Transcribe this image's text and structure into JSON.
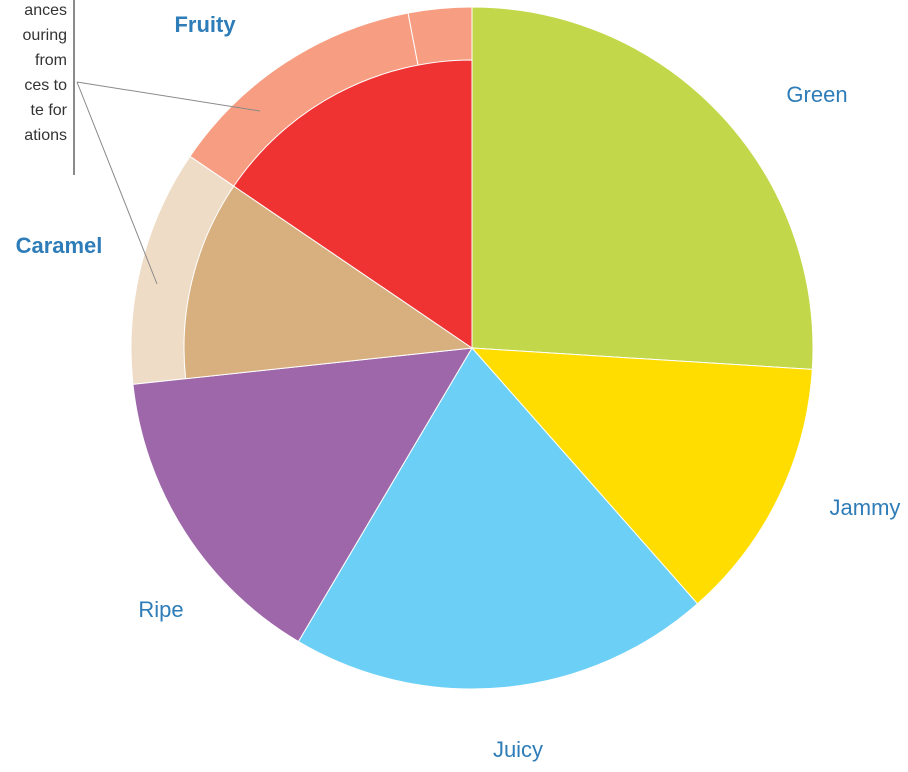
{
  "chart_data": {
    "type": "pie",
    "inner_slices": [
      {
        "label": "Green",
        "value": 26.0,
        "color": "#c2d84a",
        "extends_to_outer": true
      },
      {
        "label": "Jammy",
        "value": 12.5,
        "color": "#ffdd00",
        "extends_to_outer": true
      },
      {
        "label": "Juicy",
        "value": 20.0,
        "color": "#6ccff6",
        "extends_to_outer": true
      },
      {
        "label": "Ripe",
        "value": 14.8,
        "color": "#9e67aa",
        "extends_to_outer": true
      },
      {
        "label": "",
        "value": 11.2,
        "color": "#d8b080",
        "extends_to_outer": false
      },
      {
        "label": "",
        "value": 15.5,
        "color": "#ef3232",
        "extends_to_outer": false
      }
    ],
    "outer_ring": [
      {
        "label": "Caramel",
        "value": 11.2,
        "color": "#efdcc6"
      },
      {
        "label": "Fruity",
        "value": 12.5,
        "color": "#f79d82"
      },
      {
        "label": "",
        "value": 3.5,
        "color": "#f79d82"
      }
    ],
    "labels": {
      "green": "Green",
      "jammy": "Jammy",
      "juicy": "Juicy",
      "ripe": "Ripe",
      "caramel": "Caramel",
      "fruity": "Fruity"
    },
    "annotation_lines": [
      "ances",
      "ouring",
      "from",
      "ces to",
      "te for",
      "ations"
    ],
    "colors": {
      "label_text": "#2e7db8",
      "annotation_text": "#333333",
      "leader_line": "#8a8a8a"
    }
  }
}
